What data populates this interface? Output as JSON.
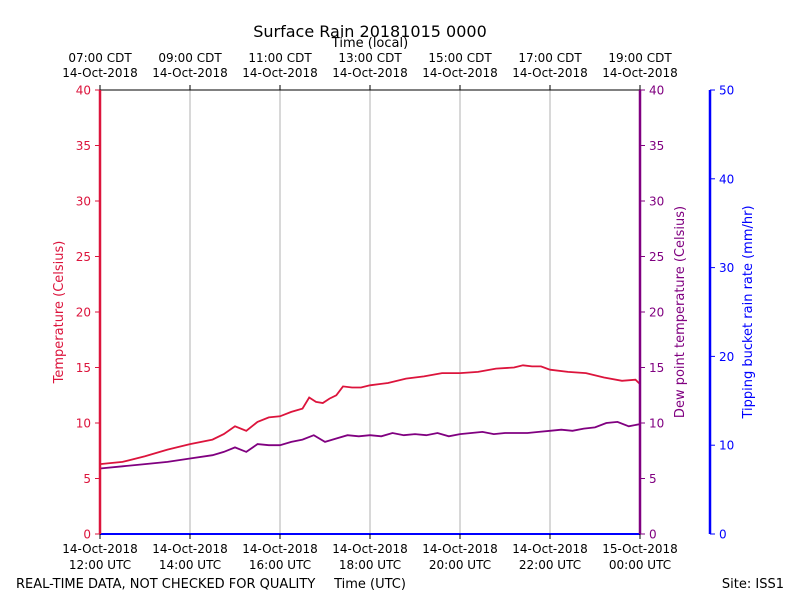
{
  "colors": {
    "temperature": "#dc143c",
    "dewpoint": "#800080",
    "rain": "#0000ff",
    "grid": "#b0b0b0",
    "text": "#000000"
  },
  "footer": {
    "disclaimer": "REAL-TIME DATA, NOT CHECKED FOR QUALITY",
    "site": "Site: ISS1"
  },
  "chart_data": {
    "type": "line",
    "title": "Surface Rain 20181015 0000",
    "xlabel_bottom": "Time (UTC)",
    "xlabel_top": "Time (local)",
    "ylabel_left": "Temperature (Celsius)",
    "ylabel_right_inner": "Dew point temperature (Celsius)",
    "ylabel_right_outer": "Tipping bucket rain rate (mm/hr)",
    "grid": "vertical",
    "x_range_hours_utc": [
      12,
      24
    ],
    "ylim_left": [
      0,
      40
    ],
    "ylim_right_inner": [
      0,
      40
    ],
    "ylim_right_outer": [
      0,
      50
    ],
    "yticks_left": [
      "0",
      "5",
      "10",
      "15",
      "20",
      "25",
      "30",
      "35",
      "40"
    ],
    "yticks_right_inner": [
      "0",
      "5",
      "10",
      "15",
      "20",
      "25",
      "30",
      "35",
      "40"
    ],
    "yticks_right_outer": [
      "0",
      "10",
      "20",
      "30",
      "40",
      "50"
    ],
    "xticks_bottom": [
      {
        "hour": 12,
        "line1": "14-Oct-2018",
        "line2": "12:00 UTC"
      },
      {
        "hour": 14,
        "line1": "14-Oct-2018",
        "line2": "14:00 UTC"
      },
      {
        "hour": 16,
        "line1": "14-Oct-2018",
        "line2": "16:00 UTC"
      },
      {
        "hour": 18,
        "line1": "14-Oct-2018",
        "line2": "18:00 UTC"
      },
      {
        "hour": 20,
        "line1": "14-Oct-2018",
        "line2": "20:00 UTC"
      },
      {
        "hour": 22,
        "line1": "14-Oct-2018",
        "line2": "22:00 UTC"
      },
      {
        "hour": 24,
        "line1": "15-Oct-2018",
        "line2": "00:00 UTC"
      }
    ],
    "xticks_top": [
      {
        "hour": 12,
        "line1": "07:00 CDT",
        "line2": "14-Oct-2018"
      },
      {
        "hour": 14,
        "line1": "09:00 CDT",
        "line2": "14-Oct-2018"
      },
      {
        "hour": 16,
        "line1": "11:00 CDT",
        "line2": "14-Oct-2018"
      },
      {
        "hour": 18,
        "line1": "13:00 CDT",
        "line2": "14-Oct-2018"
      },
      {
        "hour": 20,
        "line1": "15:00 CDT",
        "line2": "14-Oct-2018"
      },
      {
        "hour": 22,
        "line1": "17:00 CDT",
        "line2": "14-Oct-2018"
      },
      {
        "hour": 24,
        "line1": "19:00 CDT",
        "line2": "14-Oct-2018"
      }
    ],
    "series": [
      {
        "name": "Temperature",
        "axis": "left",
        "x": [
          12.0,
          12.5,
          13.0,
          13.5,
          14.0,
          14.5,
          14.75,
          15.0,
          15.25,
          15.5,
          15.75,
          16.0,
          16.25,
          16.5,
          16.65,
          16.8,
          16.95,
          17.1,
          17.25,
          17.4,
          17.6,
          17.8,
          18.0,
          18.4,
          18.8,
          19.2,
          19.6,
          20.0,
          20.4,
          20.8,
          21.2,
          21.4,
          21.6,
          21.8,
          22.0,
          22.4,
          22.8,
          23.2,
          23.6,
          23.9,
          24.0
        ],
        "values": [
          6.3,
          6.5,
          7.0,
          7.6,
          8.1,
          8.5,
          9.0,
          9.7,
          9.3,
          10.1,
          10.5,
          10.6,
          11.0,
          11.3,
          12.3,
          11.9,
          11.8,
          12.2,
          12.5,
          13.3,
          13.2,
          13.2,
          13.4,
          13.6,
          14.0,
          14.2,
          14.5,
          14.5,
          14.6,
          14.9,
          15.0,
          15.2,
          15.1,
          15.1,
          14.8,
          14.6,
          14.5,
          14.1,
          13.8,
          13.9,
          13.5
        ]
      },
      {
        "name": "Dew point temperature",
        "axis": "right_inner",
        "x": [
          12.0,
          12.5,
          13.0,
          13.5,
          14.0,
          14.5,
          14.75,
          15.0,
          15.25,
          15.5,
          15.75,
          16.0,
          16.25,
          16.5,
          16.75,
          17.0,
          17.25,
          17.5,
          17.75,
          18.0,
          18.25,
          18.5,
          18.75,
          19.0,
          19.25,
          19.5,
          19.75,
          20.0,
          20.25,
          20.5,
          20.75,
          21.0,
          21.25,
          21.5,
          21.75,
          22.0,
          22.25,
          22.5,
          22.75,
          23.0,
          23.25,
          23.5,
          23.75,
          24.0
        ],
        "values": [
          5.9,
          6.1,
          6.3,
          6.5,
          6.8,
          7.1,
          7.4,
          7.8,
          7.4,
          8.1,
          8.0,
          8.0,
          8.3,
          8.5,
          8.9,
          8.3,
          8.6,
          8.9,
          8.8,
          8.9,
          8.8,
          9.1,
          8.9,
          9.0,
          8.9,
          9.1,
          8.8,
          9.0,
          9.1,
          9.2,
          9.0,
          9.1,
          9.1,
          9.1,
          9.2,
          9.3,
          9.4,
          9.3,
          9.5,
          9.6,
          10.0,
          10.1,
          9.7,
          9.9
        ]
      },
      {
        "name": "Tipping bucket rain rate",
        "axis": "right_outer",
        "x": [
          12.0,
          24.0
        ],
        "values": [
          0,
          0
        ]
      }
    ]
  }
}
